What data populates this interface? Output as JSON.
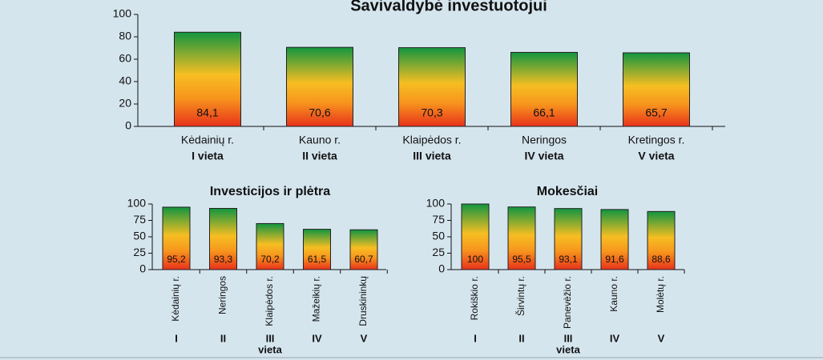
{
  "chart_data": [
    {
      "type": "bar",
      "title": "Savivaldybė investuotojui",
      "categories": [
        "Kėdainių r.",
        "Kauno r.",
        "Klaipėdos r.",
        "Neringos",
        "Kretingos r."
      ],
      "ranks": [
        "I vieta",
        "II vieta",
        "III vieta",
        "IV vieta",
        "V vieta"
      ],
      "values": [
        84.1,
        70.6,
        70.3,
        66.1,
        65.7
      ],
      "value_labels": [
        "84,1",
        "70,6",
        "70,3",
        "66,1",
        "65,7"
      ],
      "ylim": [
        0,
        100
      ],
      "yticks": [
        0,
        20,
        40,
        60,
        80,
        100
      ]
    },
    {
      "type": "bar",
      "title": "Investicijos ir plėtra",
      "categories": [
        "Kėdainių r.",
        "Neringos",
        "Klaipėdos r.",
        "Mažeikių r.",
        "Druskininkų"
      ],
      "ranks": [
        "I",
        "II",
        "III",
        "IV",
        "V"
      ],
      "rank_note": "vieta",
      "values": [
        95.2,
        93.3,
        70.2,
        61.5,
        60.7
      ],
      "value_labels": [
        "95,2",
        "93,3",
        "70,2",
        "61,5",
        "60,7"
      ],
      "ylim": [
        0,
        100
      ],
      "yticks": [
        0,
        25,
        50,
        75,
        100
      ]
    },
    {
      "type": "bar",
      "title": "Mokesčiai",
      "categories": [
        "Rokiškio r.",
        "Širvintų r.",
        "Panevėžio r.",
        "Kauno r.",
        "Molėtų r."
      ],
      "ranks": [
        "I",
        "II",
        "III",
        "IV",
        "V"
      ],
      "rank_note": "vieta",
      "values": [
        100,
        95.5,
        93.1,
        91.6,
        88.6
      ],
      "value_labels": [
        "100",
        "95,5",
        "93,1",
        "91,6",
        "88,6"
      ],
      "ylim": [
        0,
        100
      ],
      "yticks": [
        0,
        25,
        50,
        75,
        100
      ]
    }
  ]
}
